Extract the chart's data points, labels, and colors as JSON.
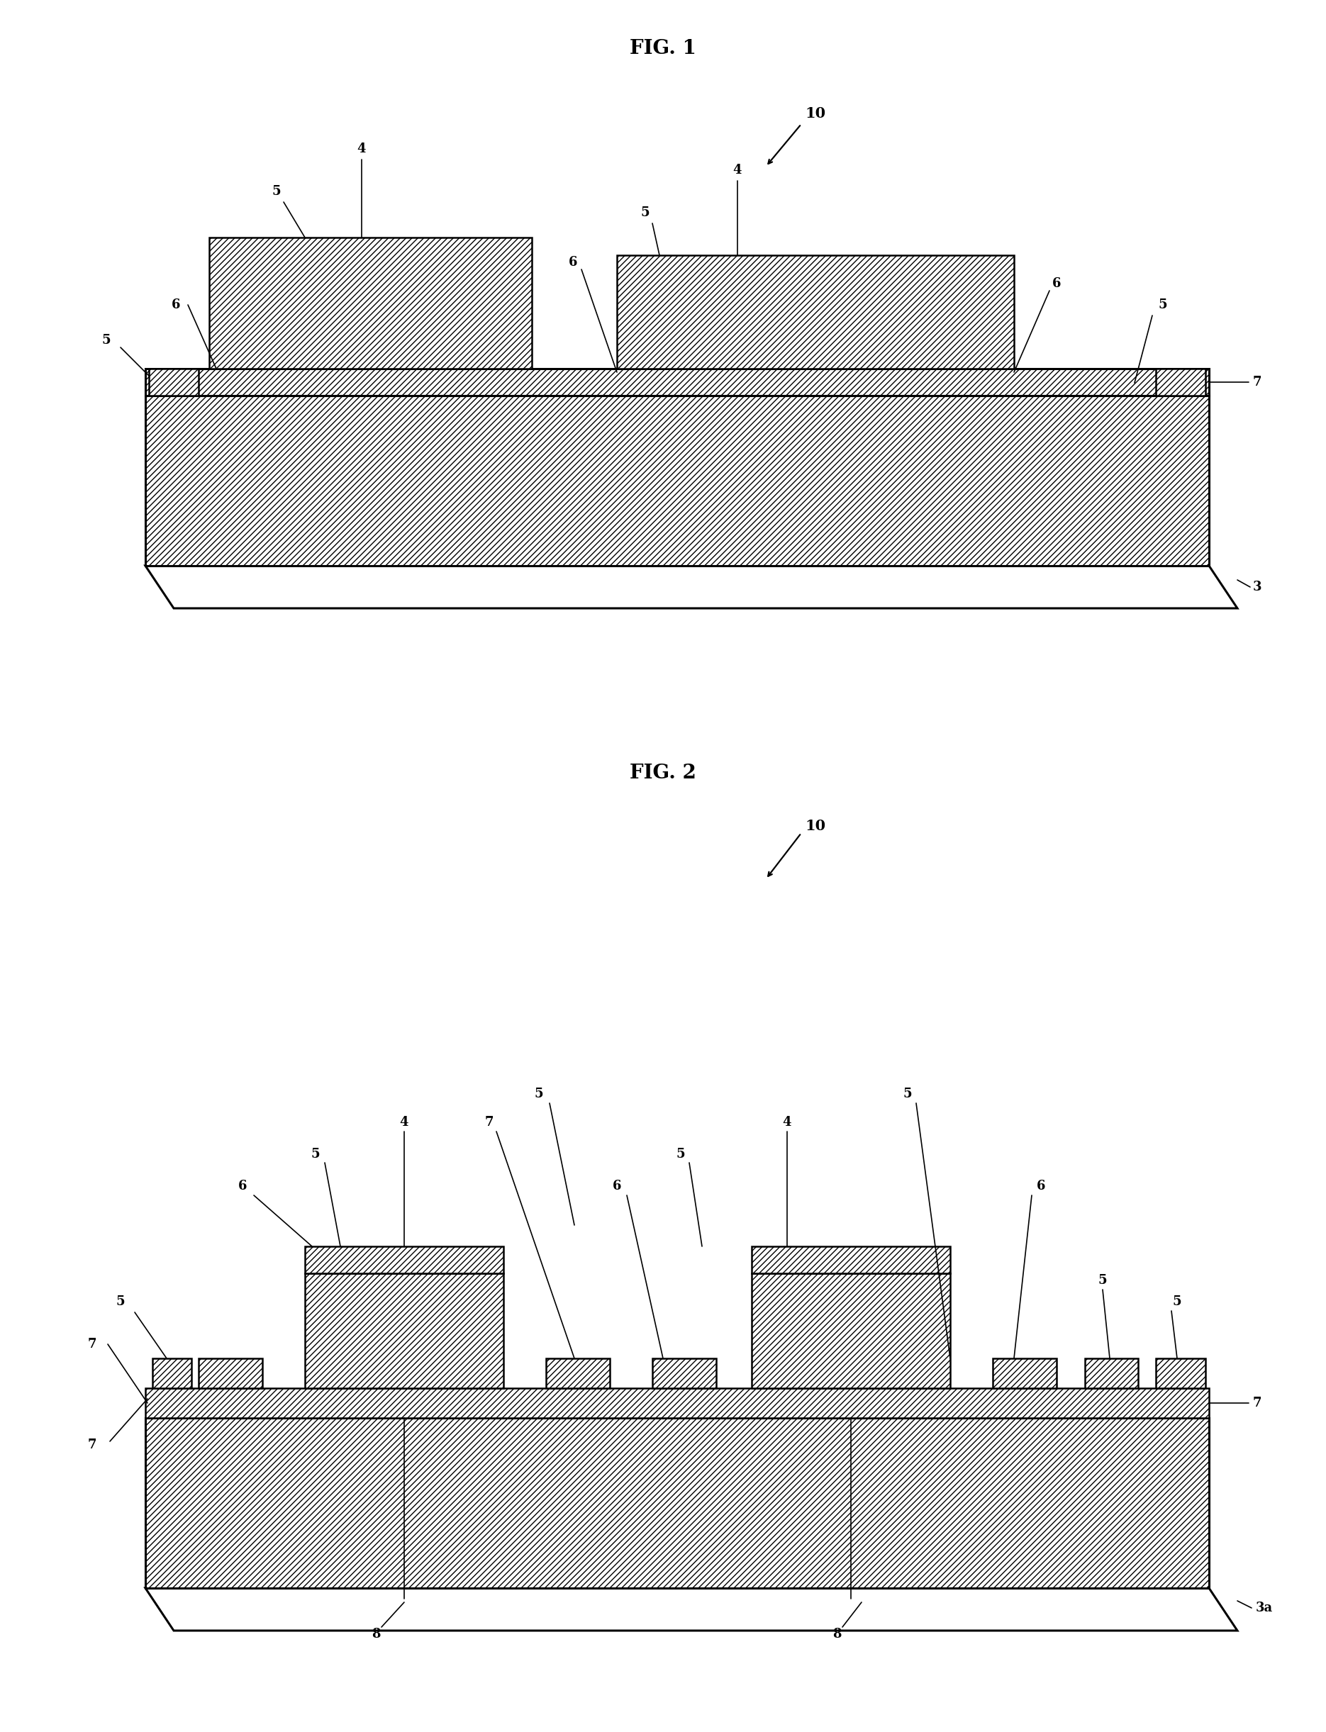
{
  "fig_width": 18.7,
  "fig_height": 24.43,
  "bg_color": "#ffffff",
  "lc": "#000000",
  "fig1_title": "FIG. 1",
  "fig2_title": "FIG. 2",
  "hatch_fine": "////",
  "hatch_coarse": "///",
  "fontsize_title": 20,
  "fontsize_label": 13,
  "lw_main": 1.8,
  "lw_thick": 2.2,
  "lw_thin": 1.2
}
